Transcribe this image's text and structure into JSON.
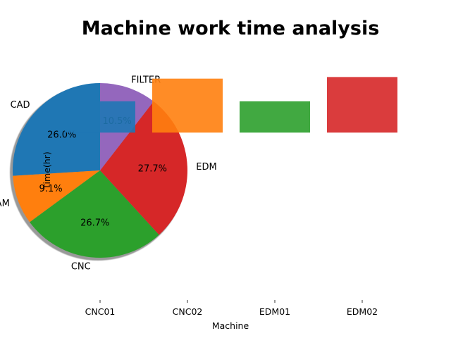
{
  "chart_data": [
    {
      "type": "pie",
      "title": "Machine work time analysis",
      "categories": [
        "CAD",
        "CAM",
        "CNC",
        "EDM",
        "FILTER"
      ],
      "values": [
        26.0,
        9.1,
        26.7,
        27.7,
        10.5
      ],
      "value_labels": [
        "26.0%",
        "9.1%",
        "26.7%",
        "27.7%",
        "10.5%"
      ],
      "colors": [
        "#1f77b4",
        "#ff7f0e",
        "#2ca02c",
        "#d62728",
        "#9467bd"
      ],
      "start_angle_deg": 90,
      "counterclockwise": true,
      "shadow": true
    },
    {
      "type": "bar",
      "categories": [
        "CNC01",
        "CNC02",
        "EDM01",
        "EDM02"
      ],
      "values": [
        0.58,
        1.0,
        0.58,
        1.03
      ],
      "bar_bottom": 0.0,
      "xlabel": "Machine",
      "ylabel": "Time(hr)",
      "colors": [
        "#1f77b4",
        "#ff7f0e",
        "#2ca02c",
        "#d62728"
      ],
      "ylim": [
        -3.1,
        1.7
      ],
      "opacity": 0.9
    }
  ]
}
